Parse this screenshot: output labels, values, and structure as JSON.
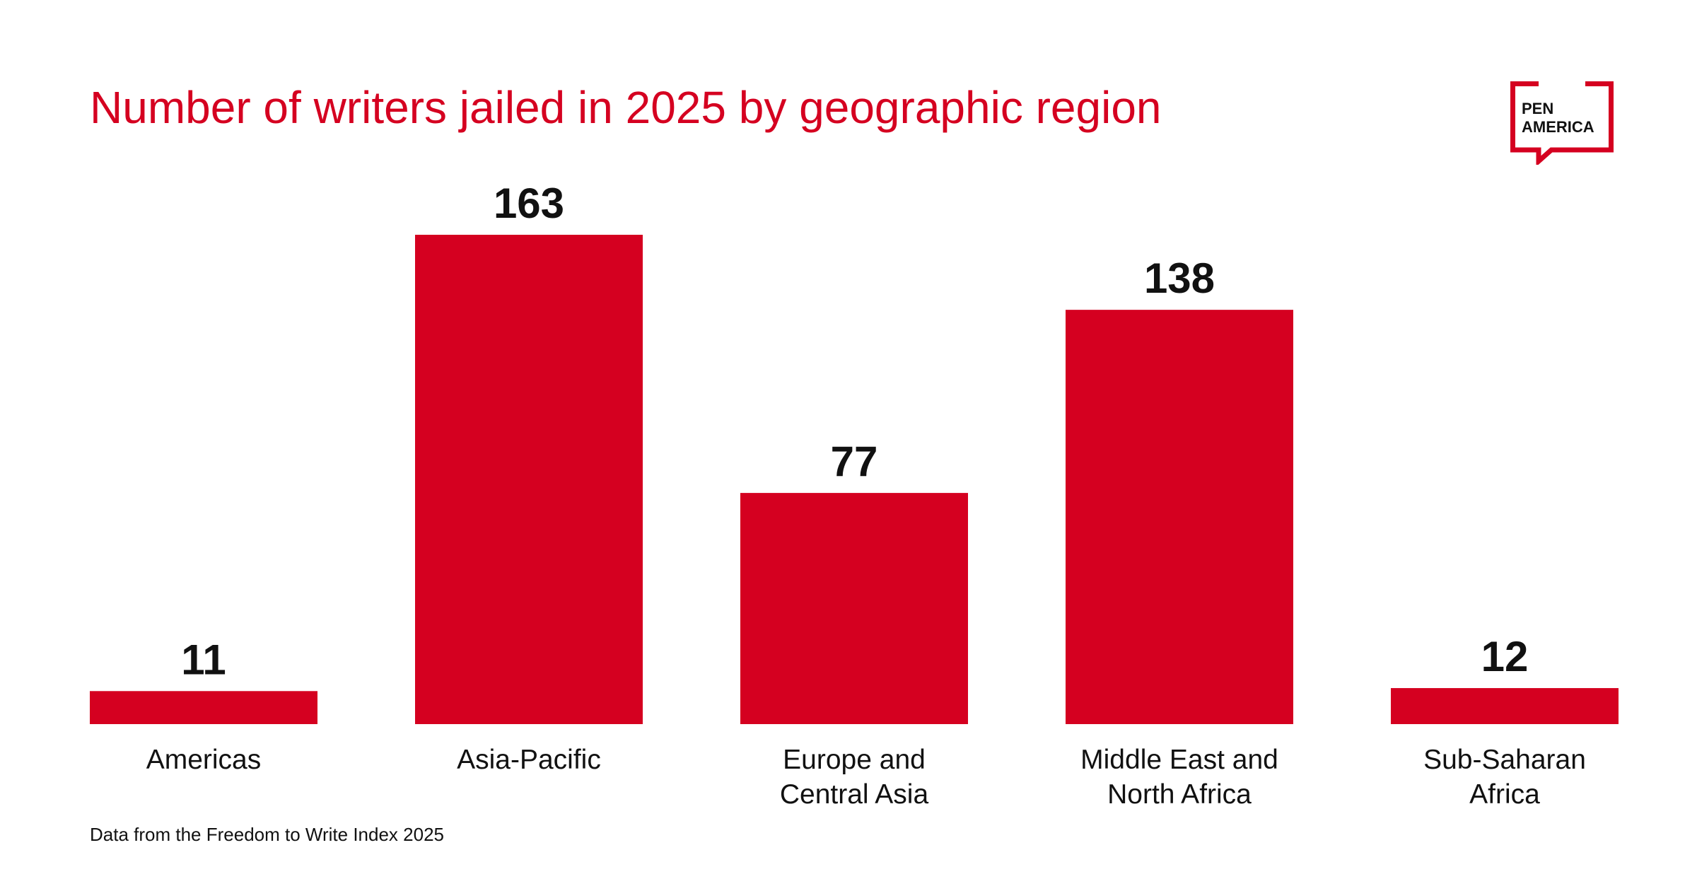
{
  "logo": {
    "line1": "PEN",
    "line2": "AMERICA"
  },
  "colors": {
    "accent": "#d50020",
    "text": "#111111"
  },
  "source_note": "Data from the Freedom to Write Index 2025",
  "chart_data": {
    "type": "bar",
    "title": "Number of writers jailed in 2025 by geographic region",
    "categories": [
      [
        "Americas"
      ],
      [
        "Asia-Pacific"
      ],
      [
        "Europe and",
        "Central Asia"
      ],
      [
        "Middle East and",
        "North Africa"
      ],
      [
        "Sub-Saharan",
        "Africa"
      ]
    ],
    "values": [
      11,
      163,
      77,
      138,
      12
    ],
    "xlabel": "",
    "ylabel": "",
    "ylim": [
      0,
      163
    ],
    "grid": false,
    "data_labels": true
  }
}
